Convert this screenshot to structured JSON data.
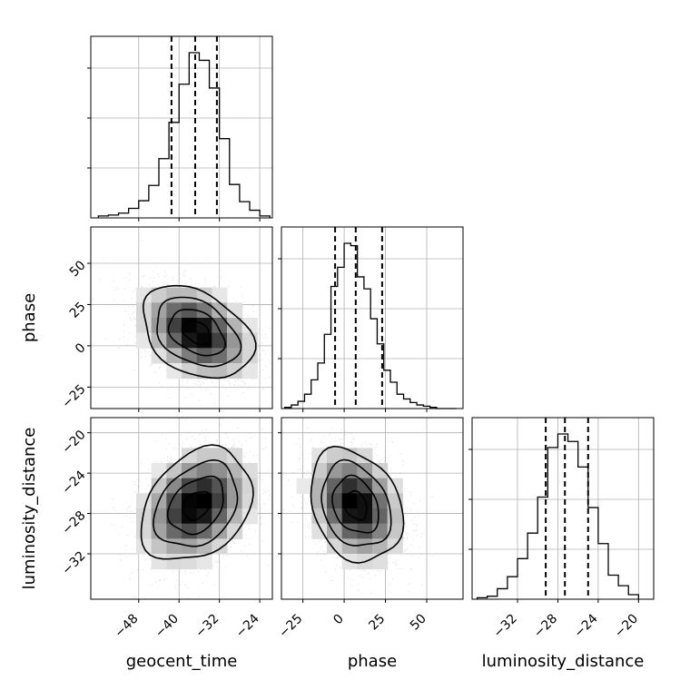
{
  "chart_data": {
    "type": "corner",
    "parameters": [
      "geocent_time",
      "phase",
      "luminosity_distance"
    ],
    "axis_labels": {
      "x": [
        "geocent_time",
        "phase",
        "luminosity_distance"
      ],
      "y": [
        "phase",
        "luminosity_distance"
      ]
    },
    "ranges": {
      "geocent_time": [
        -57.5,
        -21.5
      ],
      "phase": [
        -38,
        72
      ],
      "luminosity_distance": [
        -36.5,
        -18.5
      ]
    },
    "ticks": {
      "geocent_time": {
        "values": [
          -48,
          -40,
          -32,
          -24
        ],
        "labels": [
          "−48",
          "−40",
          "−32",
          "−24"
        ]
      },
      "phase": {
        "values": [
          -25,
          0,
          25,
          50
        ],
        "labels": [
          "−25",
          "0",
          "25",
          "50"
        ]
      },
      "luminosity_distance": {
        "values": [
          -32,
          -28,
          -24,
          -20
        ],
        "labels": [
          "−32",
          "−28",
          "−24",
          "−20"
        ]
      }
    },
    "quantiles": {
      "geocent_time": [
        -41.5,
        -36.8,
        -32.5
      ],
      "phase": [
        -5.5,
        7,
        23
      ],
      "luminosity_distance": [
        -29.2,
        -27.3,
        -25.0
      ]
    },
    "histograms": [
      {
        "parameter": "geocent_time",
        "bin_edges": [
          -56,
          -54,
          -52,
          -50,
          -48,
          -46,
          -44,
          -42,
          -40,
          -38,
          -36,
          -34,
          -32,
          -30,
          -28,
          -26,
          -24,
          -22
        ],
        "counts": [
          2,
          3,
          5,
          10,
          18,
          34,
          62,
          100,
          140,
          173,
          165,
          136,
          83,
          35,
          17,
          8,
          2
        ]
      },
      {
        "parameter": "phase",
        "bin_edges": [
          -36,
          -32,
          -28,
          -24,
          -20,
          -16,
          -12,
          -8,
          -4,
          0,
          4,
          8,
          12,
          16,
          20,
          24,
          28,
          32,
          36,
          40,
          44,
          48,
          52,
          56,
          60,
          64,
          68
        ],
        "counts": [
          1,
          3,
          6,
          12,
          24,
          38,
          62,
          102,
          118,
          138,
          136,
          110,
          100,
          75,
          54,
          32,
          22,
          12,
          8,
          5,
          3,
          2,
          1,
          0,
          0,
          0
        ]
      },
      {
        "parameter": "luminosity_distance",
        "bin_edges": [
          -36,
          -35,
          -34,
          -33,
          -32,
          -31,
          -30,
          -29,
          -28,
          -27,
          -26,
          -25,
          -24,
          -23,
          -22,
          -21,
          -20
        ],
        "counts": [
          1,
          2,
          7,
          15,
          27,
          44,
          68,
          101,
          110,
          105,
          88,
          61,
          37,
          16,
          9,
          3
        ]
      }
    ],
    "scatter_2d": [
      {
        "x": "geocent_time",
        "y": "phase",
        "center": [
          -36.5,
          8
        ],
        "std": [
          5.5,
          14
        ],
        "correlation": -0.35,
        "contour_levels_sigma": [
          0.5,
          1,
          1.5,
          2
        ]
      },
      {
        "x": "geocent_time",
        "y": "luminosity_distance",
        "center": [
          -36.5,
          -27.2
        ],
        "std": [
          5.5,
          2.8
        ],
        "correlation": 0.3,
        "contour_levels_sigma": [
          0.5,
          1,
          1.5,
          2
        ]
      },
      {
        "x": "phase",
        "y": "luminosity_distance",
        "center": [
          7,
          -27.2
        ],
        "std": [
          14,
          2.8
        ],
        "correlation": -0.25,
        "contour_levels_sigma": [
          0.5,
          1,
          1.5,
          2
        ]
      }
    ],
    "grid": true
  }
}
